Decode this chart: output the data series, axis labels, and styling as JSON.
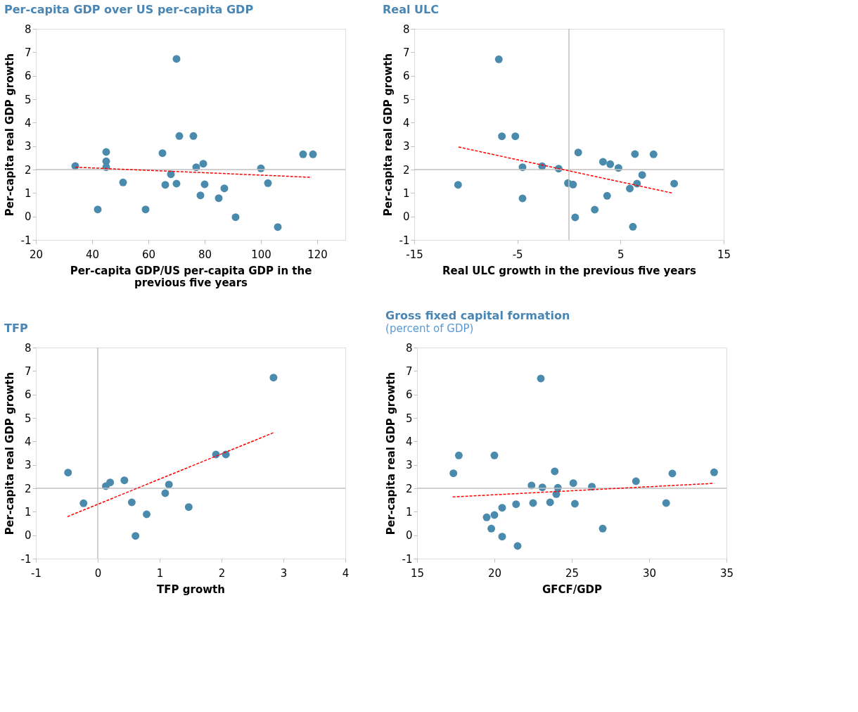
{
  "chart_data": [
    {
      "type": "scatter",
      "title": "Per-capita GDP over US per-capita GDP",
      "xlabel": "Per-capita GDP/US per-capita GDP in the previous five years",
      "ylabel": "Per-capita real GDP growth",
      "xlim": [
        20,
        130
      ],
      "ylim": [
        -1,
        8
      ],
      "xticks": [
        20,
        40,
        60,
        80,
        100,
        120
      ],
      "yticks": [
        -1,
        0,
        1,
        2,
        3,
        4,
        5,
        6,
        7,
        8
      ],
      "grid": false,
      "legend": false,
      "ref_lines": [
        {
          "axis": "y",
          "value": 2,
          "color": "#bfbfbf"
        }
      ],
      "series": [
        {
          "type": "scatter",
          "color": "#4a8aad",
          "marker": "circle",
          "x": [
            34,
            42,
            45,
            45,
            45,
            51,
            59,
            65,
            66,
            68,
            70,
            70,
            71,
            76,
            77,
            78.5,
            79.5,
            80,
            85,
            87,
            91,
            100,
            102.5,
            106,
            115,
            118.5
          ],
          "values": [
            2.15,
            0.3,
            2.75,
            2.35,
            2.1,
            1.45,
            0.3,
            2.7,
            1.35,
            1.8,
            1.4,
            6.72,
            3.43,
            3.43,
            2.1,
            0.9,
            2.25,
            1.37,
            0.78,
            1.2,
            -0.03,
            2.05,
            1.42,
            -0.45,
            2.65,
            2.65
          ]
        },
        {
          "type": "line",
          "color": "#ff0000",
          "line_style": "dashed",
          "x": [
            34,
            118
          ],
          "values": [
            2.1,
            1.67
          ]
        }
      ]
    },
    {
      "type": "scatter",
      "title": "Real ULC",
      "xlabel": "Real ULC growth in the previous five years",
      "ylabel": "Per-capita real GDP growth",
      "xlim": [
        -15,
        15
      ],
      "ylim": [
        -1,
        8
      ],
      "xticks": [
        -15,
        -5,
        5,
        15
      ],
      "yticks": [
        -1,
        0,
        1,
        2,
        3,
        4,
        5,
        6,
        7,
        8
      ],
      "grid": false,
      "legend": false,
      "ref_lines": [
        {
          "axis": "y",
          "value": 2,
          "color": "#bfbfbf"
        },
        {
          "axis": "x",
          "value": 0,
          "color": "#bfbfbf"
        }
      ],
      "series": [
        {
          "type": "scatter",
          "color": "#4a8aad",
          "marker": "circle",
          "x": [
            -6.8,
            -6.5,
            -5.2,
            -4.5,
            -2.6,
            -1.0,
            -10.75,
            -4.5,
            -0.1,
            0.4,
            0.6,
            0.9,
            2.5,
            3.3,
            4.0,
            4.8,
            3.7,
            5.9,
            6.4,
            6.6,
            7.1,
            6.2,
            8.2,
            10.2
          ],
          "values": [
            6.7,
            3.42,
            3.42,
            2.1,
            2.14,
            2.04,
            1.35,
            0.77,
            1.42,
            1.36,
            -0.04,
            2.73,
            0.29,
            2.33,
            2.23,
            2.07,
            0.88,
            1.19,
            2.66,
            1.4,
            1.77,
            -0.44,
            2.65,
            1.4
          ]
        },
        {
          "type": "line",
          "color": "#ff0000",
          "line_style": "dashed",
          "x": [
            -10.7,
            10.0
          ],
          "values": [
            2.96,
            1.0
          ]
        }
      ]
    },
    {
      "type": "scatter",
      "title": "TFP",
      "xlabel": "TFP growth",
      "ylabel": "Per-capita real GDP growth",
      "xlim": [
        -1,
        4
      ],
      "ylim": [
        -1,
        8
      ],
      "xticks": [
        -1,
        0,
        1,
        2,
        3,
        4
      ],
      "yticks": [
        -1,
        0,
        1,
        2,
        3,
        4,
        5,
        6,
        7,
        8
      ],
      "grid": false,
      "legend": false,
      "ref_lines": [
        {
          "axis": "y",
          "value": 2,
          "color": "#bfbfbf"
        },
        {
          "axis": "x",
          "value": 0,
          "color": "#bfbfbf"
        }
      ],
      "series": [
        {
          "type": "scatter",
          "color": "#4a8aad",
          "marker": "circle",
          "x": [
            -0.48,
            -0.23,
            0.13,
            0.2,
            0.43,
            0.55,
            0.61,
            0.79,
            1.09,
            1.15,
            1.47,
            1.91,
            2.07,
            2.84
          ],
          "values": [
            2.67,
            1.36,
            2.09,
            2.25,
            2.34,
            1.4,
            -0.03,
            0.89,
            1.79,
            2.16,
            1.2,
            3.44,
            3.44,
            6.72
          ]
        },
        {
          "type": "line",
          "color": "#ff0000",
          "line_style": "dashed",
          "x": [
            -0.49,
            2.84
          ],
          "values": [
            0.79,
            4.37
          ]
        }
      ]
    },
    {
      "type": "scatter",
      "title": "Gross fixed capital formation",
      "subtitle": "(percent of GDP)",
      "xlabel": "GFCF/GDP",
      "ylabel": "Per-capita real GDP growth",
      "xlim": [
        15,
        35
      ],
      "ylim": [
        -1,
        8
      ],
      "xticks": [
        15,
        20,
        25,
        30,
        35
      ],
      "yticks": [
        -1,
        0,
        1,
        2,
        3,
        4,
        5,
        6,
        7,
        8
      ],
      "grid": false,
      "legend": false,
      "ref_lines": [
        {
          "axis": "y",
          "value": 2,
          "color": "#bfbfbf"
        }
      ],
      "series": [
        {
          "type": "scatter",
          "color": "#4a8aad",
          "marker": "circle",
          "x": [
            17.35,
            17.7,
            20.0,
            23.0,
            23.9,
            22.4,
            23.1,
            24.1,
            25.1,
            26.3,
            29.15,
            31.5,
            34.2,
            24.0,
            31.1,
            25.2,
            23.6,
            22.5,
            21.4,
            20.5,
            20.0,
            19.5,
            19.8,
            20.5,
            21.5,
            27.0
          ],
          "values": [
            2.64,
            3.4,
            3.4,
            6.68,
            2.72,
            2.12,
            2.04,
            2.02,
            2.22,
            2.07,
            2.3,
            2.63,
            2.68,
            1.75,
            1.37,
            1.34,
            1.4,
            1.37,
            1.32,
            1.17,
            0.86,
            0.76,
            0.28,
            -0.06,
            -0.46,
            0.28
          ]
        },
        {
          "type": "line",
          "color": "#ff0000",
          "line_style": "dashed",
          "x": [
            17.3,
            34.2
          ],
          "values": [
            1.63,
            2.21
          ]
        }
      ]
    }
  ]
}
